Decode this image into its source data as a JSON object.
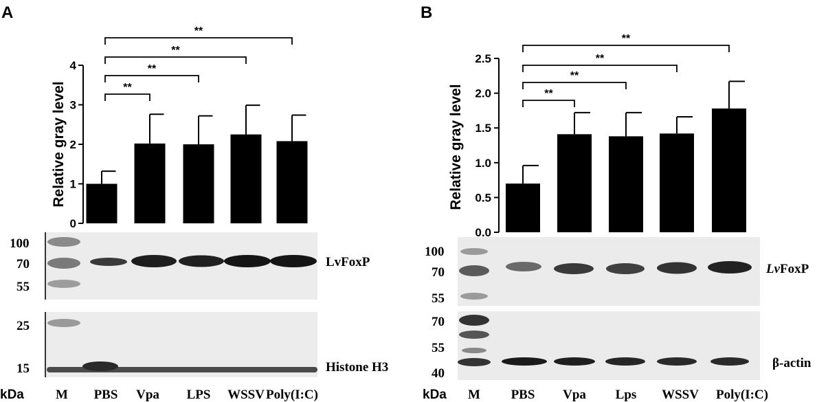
{
  "chart_data": [
    {
      "panel": "A",
      "type": "bar",
      "categories": [
        "PBS",
        "Vpa",
        "LPS",
        "WSSV",
        "Poly(I:C)"
      ],
      "values": [
        1.0,
        2.02,
        2.0,
        2.25,
        2.08
      ],
      "errors": [
        0.32,
        0.74,
        0.72,
        0.74,
        0.66
      ],
      "ylabel": "Relative gray level",
      "ylim": [
        0,
        4
      ],
      "yticks": [
        "0",
        "1",
        "2",
        "3",
        "4"
      ],
      "significance": [
        {
          "from": "PBS",
          "to": "Vpa",
          "label": "**"
        },
        {
          "from": "PBS",
          "to": "LPS",
          "label": "**"
        },
        {
          "from": "PBS",
          "to": "WSSV",
          "label": "**"
        },
        {
          "from": "PBS",
          "to": "Poly(I:C)",
          "label": "**"
        }
      ],
      "blot": {
        "lanes": [
          "M",
          "PBS",
          "Vpa",
          "LPS",
          "WSSV",
          "Poly(I:C)"
        ],
        "kda_label": "kDa",
        "top_markers": [
          "100",
          "70",
          "55"
        ],
        "bottom_markers": [
          "25",
          "15"
        ],
        "top_protein": "LvFoxP",
        "bottom_protein": "Histone H3"
      },
      "grid": false,
      "legend": "none"
    },
    {
      "panel": "B",
      "type": "bar",
      "categories": [
        "PBS",
        "Vpa",
        "Lps",
        "WSSV",
        "Poly(I:C)"
      ],
      "values": [
        0.7,
        1.41,
        1.38,
        1.42,
        1.78
      ],
      "errors": [
        0.26,
        0.31,
        0.34,
        0.24,
        0.39
      ],
      "ylabel": "Relative gray level",
      "ylim": [
        0,
        2.5
      ],
      "yticks": [
        "0.0",
        "0.5",
        "1.0",
        "1.5",
        "2.0",
        "2.5"
      ],
      "significance": [
        {
          "from": "PBS",
          "to": "Vpa",
          "label": "**"
        },
        {
          "from": "PBS",
          "to": "Lps",
          "label": "**"
        },
        {
          "from": "PBS",
          "to": "WSSV",
          "label": "**"
        },
        {
          "from": "PBS",
          "to": "Poly(I:C)",
          "label": "**"
        }
      ],
      "blot": {
        "lanes": [
          "M",
          "PBS",
          "Vpa",
          "Lps",
          "WSSV",
          "Poly(I:C)"
        ],
        "kda_label": "kDa",
        "top_markers": [
          "100",
          "70",
          "55"
        ],
        "bottom_markers": [
          "70",
          "55",
          "40"
        ],
        "top_protein_italic": "Lv",
        "top_protein_rest": "FoxP",
        "bottom_protein": "β-actin"
      },
      "grid": false,
      "legend": "none"
    }
  ]
}
